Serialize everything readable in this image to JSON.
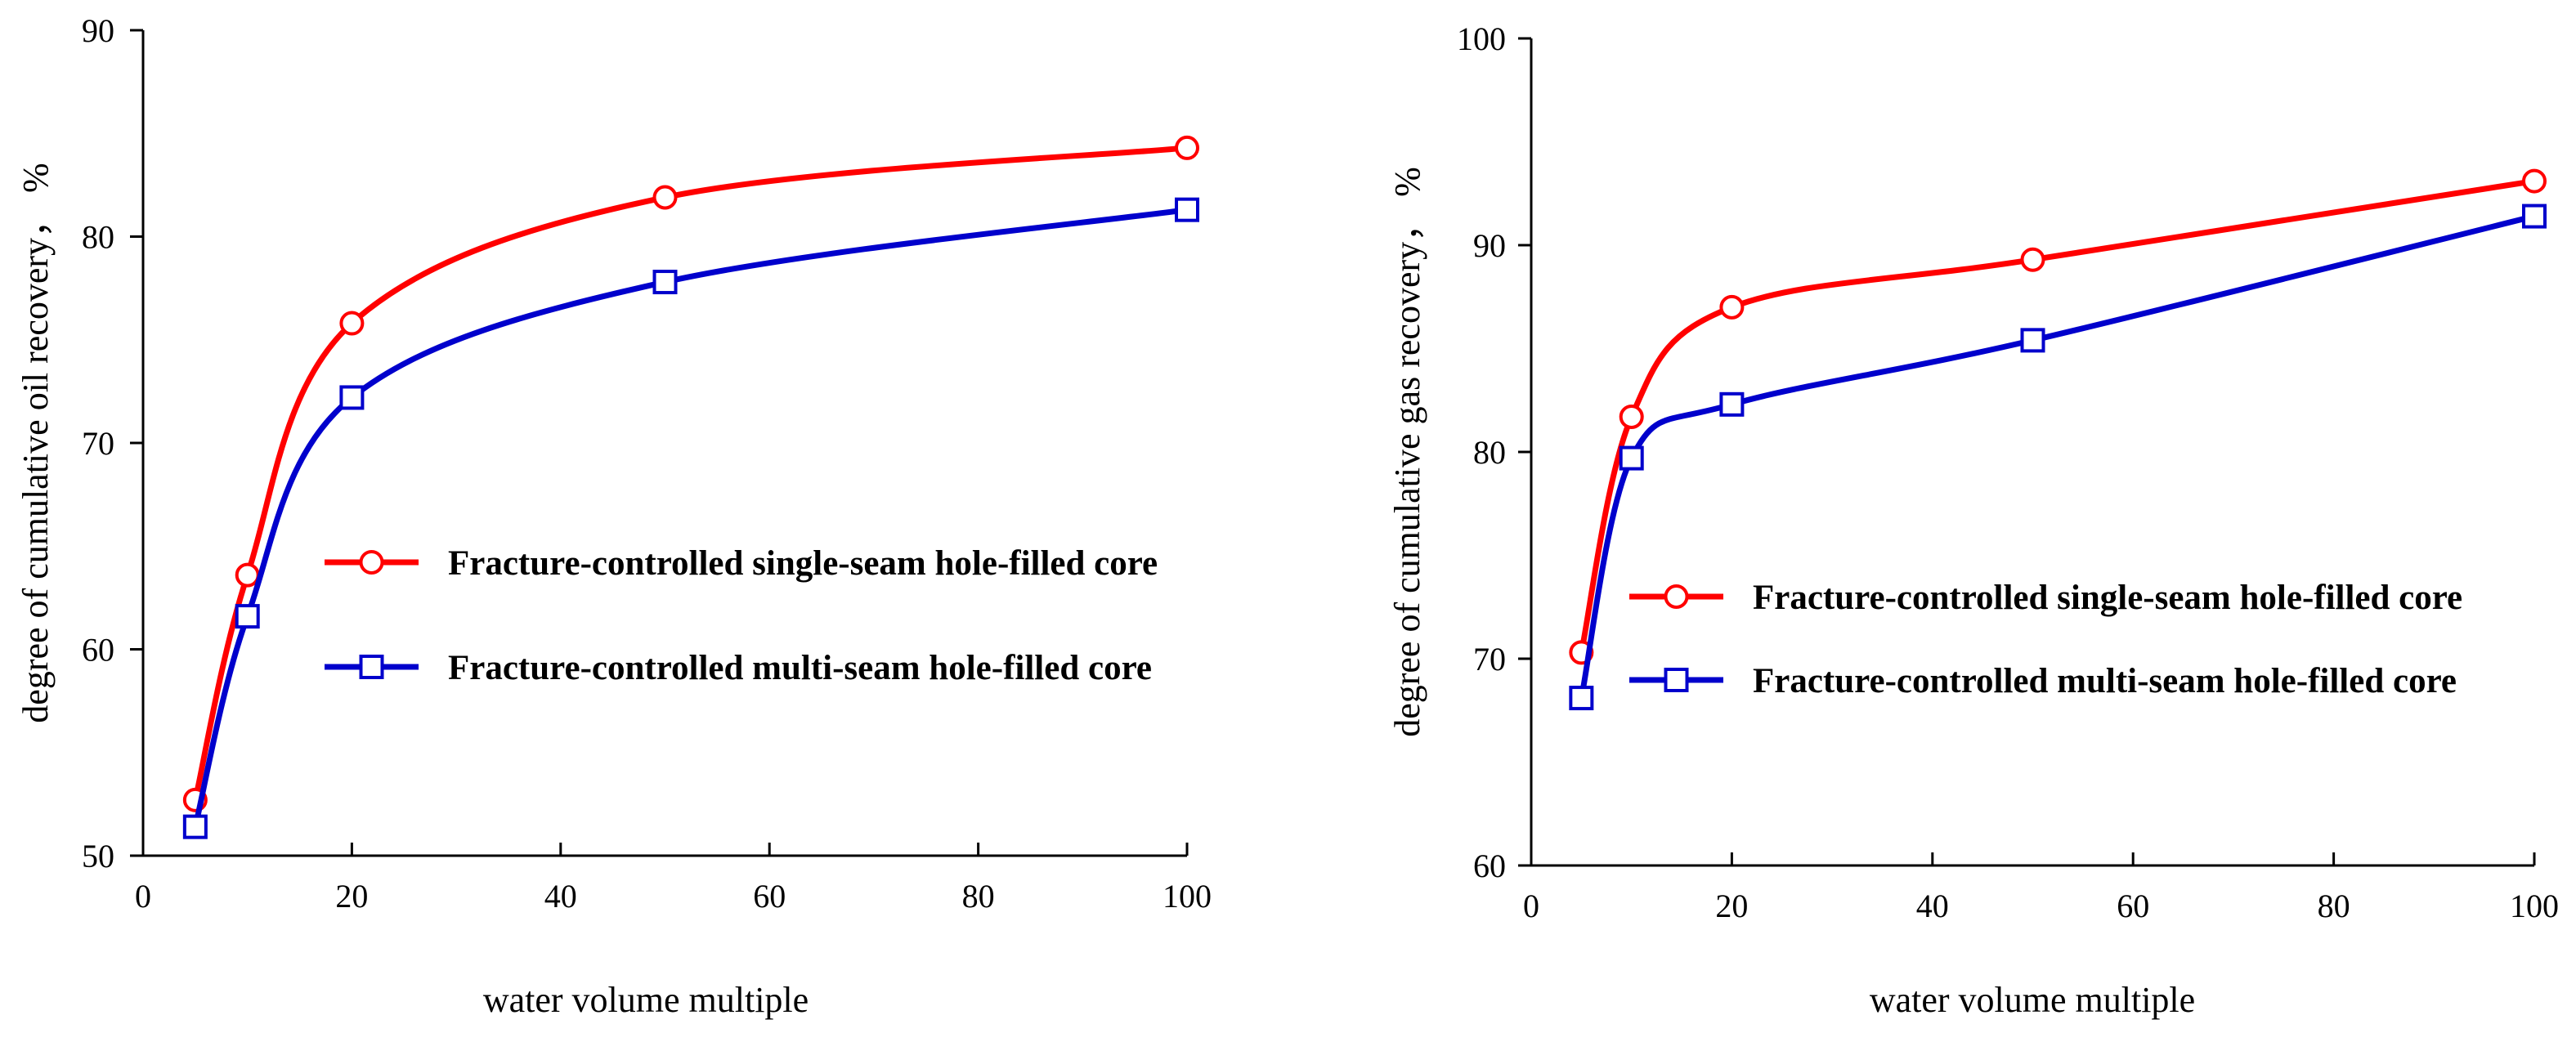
{
  "chart_data": [
    {
      "type": "line",
      "title": "",
      "xlabel": "water volume multiple",
      "ylabel": "degree of cumulative oil recovery，  %",
      "xlim": [
        0,
        100
      ],
      "ylim": [
        50,
        90
      ],
      "xticks": [
        0,
        20,
        40,
        60,
        80,
        100
      ],
      "yticks": [
        50,
        60,
        70,
        80,
        90
      ],
      "grid": false,
      "legend_position": "center-right",
      "x": [
        5,
        10,
        20,
        50,
        100
      ],
      "series": [
        {
          "name": "Fracture-controlled single-seam hole-filled core",
          "color": "#ff0000",
          "marker": "circle",
          "values": [
            52.7,
            63.6,
            75.8,
            81.9,
            84.3
          ]
        },
        {
          "name": "Fracture-controlled multi-seam hole-filled core",
          "color": "#0000cc",
          "marker": "square",
          "values": [
            51.4,
            61.6,
            72.2,
            77.8,
            81.3
          ]
        }
      ]
    },
    {
      "type": "line",
      "title": "",
      "xlabel": "water volume multiple",
      "ylabel": "degree of cumulative gas recovery，  %",
      "xlim": [
        0,
        100
      ],
      "ylim": [
        60,
        100
      ],
      "xticks": [
        0,
        20,
        40,
        60,
        80,
        100
      ],
      "yticks": [
        60,
        70,
        80,
        90,
        100
      ],
      "grid": false,
      "legend_position": "lower-right",
      "x": [
        5,
        10,
        20,
        50,
        100
      ],
      "series": [
        {
          "name": "Fracture-controlled single-seam hole-filled core",
          "color": "#ff0000",
          "marker": "circle",
          "values": [
            70.3,
            81.7,
            87.0,
            89.3,
            93.1
          ]
        },
        {
          "name": "Fracture-controlled multi-seam hole-filled core",
          "color": "#0000cc",
          "marker": "square",
          "values": [
            68.1,
            79.7,
            82.3,
            85.4,
            91.4
          ]
        }
      ]
    }
  ]
}
